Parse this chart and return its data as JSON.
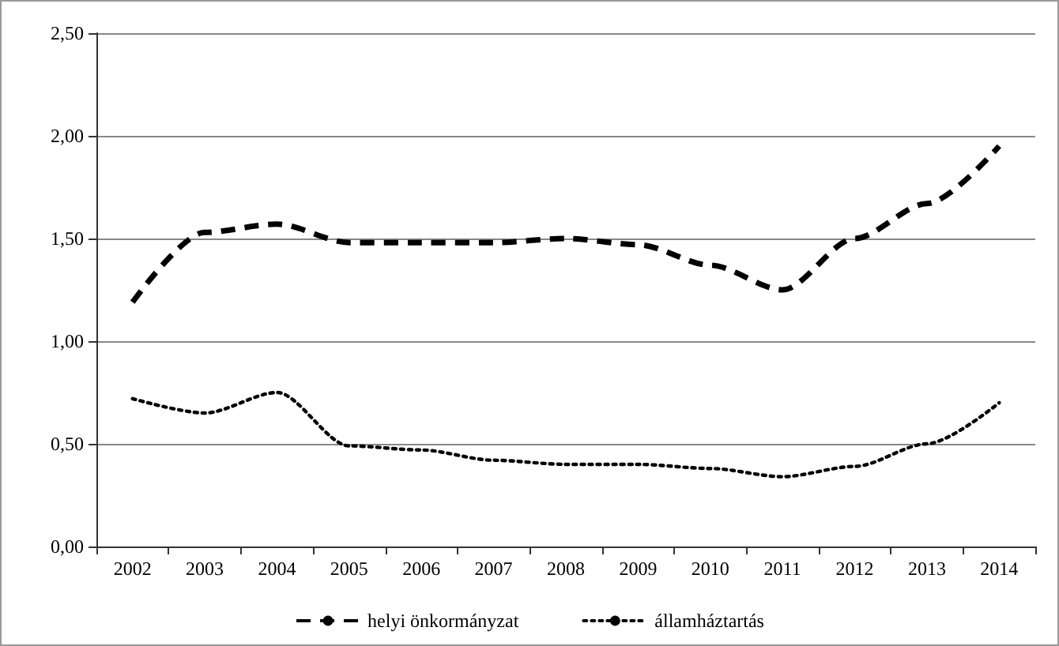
{
  "chart_data": {
    "type": "line",
    "categories": [
      "2002",
      "2003",
      "2004",
      "2005",
      "2006",
      "2007",
      "2008",
      "2009",
      "2010",
      "2011",
      "2012",
      "2013",
      "2014"
    ],
    "series": [
      {
        "name": "helyi önkormányzat",
        "color": "#000000",
        "line_style": "dashed",
        "values": [
          1.19,
          1.53,
          1.57,
          1.48,
          1.48,
          1.48,
          1.5,
          1.47,
          1.37,
          1.25,
          1.5,
          1.67,
          1.95
        ]
      },
      {
        "name": "államháztartás",
        "color": "#000000",
        "line_style": "dotted",
        "values": [
          0.72,
          0.65,
          0.75,
          0.49,
          0.47,
          0.42,
          0.4,
          0.4,
          0.38,
          0.34,
          0.39,
          0.5,
          0.7
        ]
      }
    ],
    "ylim": [
      0,
      2.5
    ],
    "yticks": [
      {
        "value": 0,
        "label": "0,00"
      },
      {
        "value": 0.5,
        "label": "0,50"
      },
      {
        "value": 1,
        "label": "1,00"
      },
      {
        "value": 1.5,
        "label": "1,50"
      },
      {
        "value": 2,
        "label": "2,00"
      },
      {
        "value": 2.5,
        "label": "2,50"
      }
    ],
    "grid": "y",
    "legend": "bottom",
    "marker": "none"
  }
}
